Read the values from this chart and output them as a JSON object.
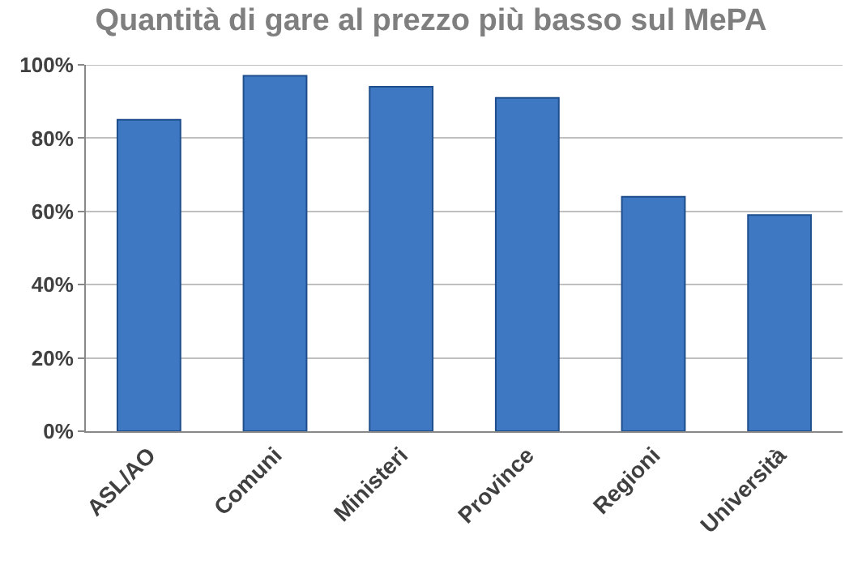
{
  "chart_data": {
    "type": "bar",
    "title": "Quantità di gare al prezzo più basso sul MePA",
    "categories": [
      "ASL/AO",
      "Comuni",
      "Ministeri",
      "Province",
      "Regioni",
      "Università"
    ],
    "values": [
      85,
      97,
      94,
      91,
      64,
      59
    ],
    "color": "#3e78c2",
    "ylim": [
      0,
      100
    ],
    "yticks": [
      {
        "value": 0,
        "label": "0%"
      },
      {
        "value": 20,
        "label": "20%"
      },
      {
        "value": 40,
        "label": "40%"
      },
      {
        "value": 60,
        "label": "60%"
      },
      {
        "value": 80,
        "label": "80%"
      },
      {
        "value": 100,
        "label": "100%"
      }
    ],
    "grid": "y"
  }
}
